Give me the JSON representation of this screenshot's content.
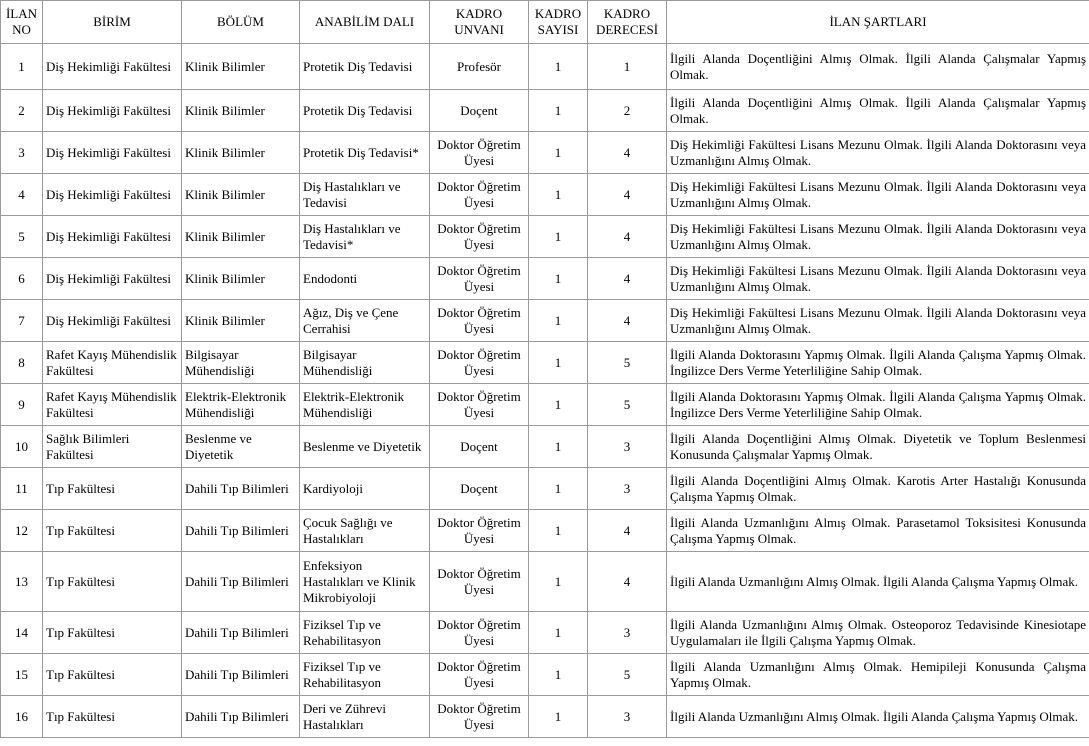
{
  "headers": [
    "İLAN NO",
    "BİRİM",
    "BÖLÜM",
    "ANABİLİM DALI",
    "KADRO UNVANI",
    "KADRO SAYISI",
    "KADRO DERECESİ",
    "İLAN ŞARTLARI"
  ],
  "rows": [
    {
      "no": "1",
      "birim": "Diş Hekimliği Fakültesi",
      "bolum": "Klinik Bilimler",
      "anabilim": "Protetik Diş Tedavisi",
      "unvan": "Profesör",
      "sayi": "1",
      "derece": "1",
      "sartlar": "İlgili Alanda Doçentliğini Almış Olmak. İlgili Alanda Çalışmalar Yapmış Olmak."
    },
    {
      "no": "2",
      "birim": "Diş Hekimliği Fakültesi",
      "bolum": "Klinik Bilimler",
      "anabilim": "Protetik Diş Tedavisi",
      "unvan": "Doçent",
      "sayi": "1",
      "derece": "2",
      "sartlar": "İlgili Alanda Doçentliğini Almış Olmak. İlgili Alanda Çalışmalar Yapmış Olmak."
    },
    {
      "no": "3",
      "birim": "Diş Hekimliği Fakültesi",
      "bolum": "Klinik Bilimler",
      "anabilim": "Protetik Diş Tedavisi*",
      "unvan": "Doktor Öğretim Üyesi",
      "sayi": "1",
      "derece": "4",
      "sartlar": "Diş Hekimliği Fakültesi Lisans Mezunu Olmak. İlgili Alanda Doktorasını veya Uzmanlığını Almış Olmak."
    },
    {
      "no": "4",
      "birim": "Diş Hekimliği Fakültesi",
      "bolum": "Klinik Bilimler",
      "anabilim": "Diş Hastalıkları ve Tedavisi",
      "unvan": "Doktor Öğretim Üyesi",
      "sayi": "1",
      "derece": "4",
      "sartlar": "Diş Hekimliği Fakültesi Lisans Mezunu Olmak. İlgili Alanda Doktorasını veya Uzmanlığını Almış Olmak."
    },
    {
      "no": "5",
      "birim": "Diş Hekimliği Fakültesi",
      "bolum": "Klinik Bilimler",
      "anabilim": "Diş Hastalıkları ve Tedavisi*",
      "unvan": "Doktor Öğretim Üyesi",
      "sayi": "1",
      "derece": "4",
      "sartlar": "Diş Hekimliği Fakültesi Lisans Mezunu Olmak. İlgili Alanda Doktorasını veya Uzmanlığını Almış Olmak."
    },
    {
      "no": "6",
      "birim": "Diş Hekimliği Fakültesi",
      "bolum": "Klinik Bilimler",
      "anabilim": "Endodonti",
      "unvan": "Doktor Öğretim Üyesi",
      "sayi": "1",
      "derece": "4",
      "sartlar": "Diş Hekimliği Fakültesi Lisans Mezunu Olmak. İlgili Alanda Doktorasını veya Uzmanlığını Almış Olmak."
    },
    {
      "no": "7",
      "birim": "Diş Hekimliği Fakültesi",
      "bolum": "Klinik Bilimler",
      "anabilim": "Ağız, Diş ve Çene Cerrahisi",
      "unvan": "Doktor Öğretim Üyesi",
      "sayi": "1",
      "derece": "4",
      "sartlar": "Diş Hekimliği Fakültesi Lisans Mezunu Olmak. İlgili Alanda Doktorasını veya Uzmanlığını Almış Olmak."
    },
    {
      "no": "8",
      "birim": "Rafet Kayış Mühendislik Fakültesi",
      "bolum": "Bilgisayar Mühendisliği",
      "anabilim": "Bilgisayar Mühendisliği",
      "unvan": "Doktor Öğretim Üyesi",
      "sayi": "1",
      "derece": "5",
      "sartlar": "İlgili Alanda Doktorasını Yapmış Olmak. İlgili Alanda Çalışma Yapmış Olmak. İngilizce Ders Verme Yeterliliğine Sahip Olmak."
    },
    {
      "no": "9",
      "birim": "Rafet Kayış Mühendislik Fakültesi",
      "bolum": "Elektrik-Elektronik Mühendisliği",
      "anabilim": "Elektrik-Elektronik Mühendisliği",
      "unvan": "Doktor Öğretim Üyesi",
      "sayi": "1",
      "derece": "5",
      "sartlar": "İlgili Alanda Doktorasını Yapmış Olmak. İlgili Alanda Çalışma Yapmış Olmak. İngilizce Ders Verme Yeterliliğine Sahip Olmak."
    },
    {
      "no": "10",
      "birim": "Sağlık Bilimleri Fakültesi",
      "bolum": "Beslenme ve Diyetetik",
      "anabilim": "Beslenme ve Diyetetik",
      "unvan": "Doçent",
      "sayi": "1",
      "derece": "3",
      "sartlar": "İlgili Alanda Doçentliğini Almış Olmak. Diyetetik ve Toplum Beslenmesi Konusunda Çalışmalar Yapmış Olmak."
    },
    {
      "no": "11",
      "birim": "Tıp Fakültesi",
      "bolum": "Dahili Tıp Bilimleri",
      "anabilim": "Kardiyoloji",
      "unvan": "Doçent",
      "sayi": "1",
      "derece": "3",
      "sartlar": "İlgili Alanda Doçentliğini Almış Olmak. Karotis Arter Hastalığı Konusunda Çalışma Yapmış Olmak."
    },
    {
      "no": "12",
      "birim": "Tıp Fakültesi",
      "bolum": "Dahili Tıp Bilimleri",
      "anabilim": "Çocuk Sağlığı ve Hastalıkları",
      "unvan": "Doktor Öğretim Üyesi",
      "sayi": "1",
      "derece": "4",
      "sartlar": "İlgili Alanda Uzmanlığını Almış Olmak. Parasetamol Toksisitesi Konusunda Çalışma Yapmış Olmak."
    },
    {
      "no": "13",
      "birim": "Tıp Fakültesi",
      "bolum": "Dahili Tıp Bilimleri",
      "anabilim": "Enfeksiyon Hastalıkları ve Klinik Mikrobiyoloji",
      "unvan": "Doktor Öğretim Üyesi",
      "sayi": "1",
      "derece": "4",
      "sartlar": "İlgili Alanda Uzmanlığını Almış Olmak.  İlgili Alanda Çalışma Yapmış Olmak."
    },
    {
      "no": "14",
      "birim": "Tıp Fakültesi",
      "bolum": "Dahili Tıp Bilimleri",
      "anabilim": "Fiziksel Tıp ve Rehabilitasyon",
      "unvan": "Doktor Öğretim Üyesi",
      "sayi": "1",
      "derece": "3",
      "sartlar": "İlgili Alanda Uzmanlığını Almış Olmak. Osteoporoz Tedavisinde Kinesiotape Uygulamaları ile İlgili Çalışma Yapmış Olmak."
    },
    {
      "no": "15",
      "birim": "Tıp Fakültesi",
      "bolum": "Dahili Tıp Bilimleri",
      "anabilim": "Fiziksel Tıp ve Rehabilitasyon",
      "unvan": "Doktor Öğretim Üyesi",
      "sayi": "1",
      "derece": "5",
      "sartlar": "İlgili Alanda Uzmanlığını Almış Olmak.  Hemipileji Konusunda Çalışma Yapmış Olmak."
    },
    {
      "no": "16",
      "birim": "Tıp Fakültesi",
      "bolum": "Dahili Tıp Bilimleri",
      "anabilim": "Deri ve Zührevi Hastalıkları",
      "unvan": "Doktor Öğretim Üyesi",
      "sayi": "1",
      "derece": "3",
      "sartlar": "İlgili Alanda Uzmanlığını Almış Olmak.  İlgili Alanda Çalışma Yapmış Olmak."
    }
  ]
}
